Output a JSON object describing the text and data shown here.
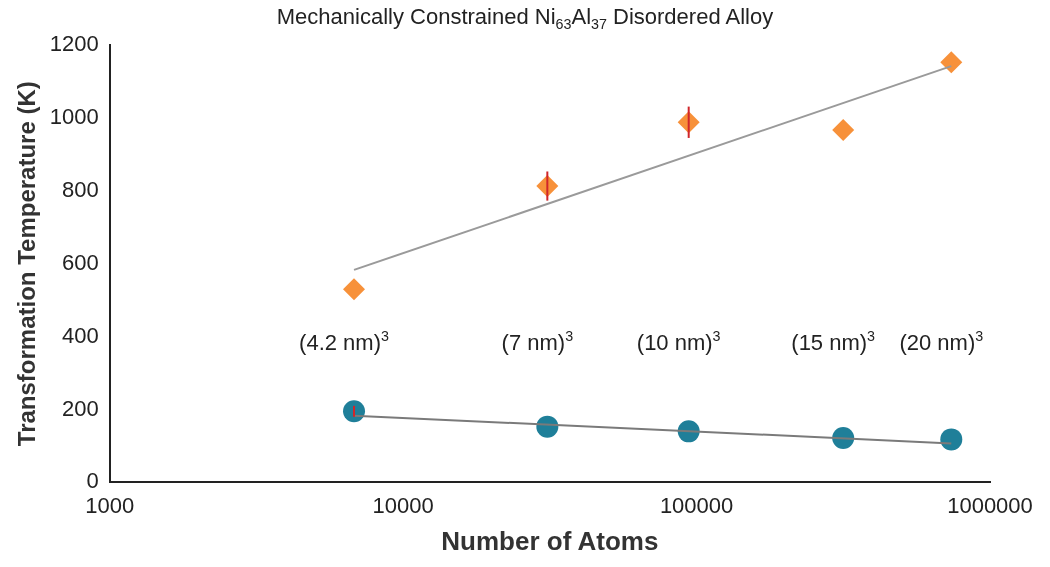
{
  "chart_data": {
    "type": "scatter",
    "title": "Mechanically Constrained Ni$_{63}$Al$_{37}$ Disordered Alloy",
    "xlabel": "Number of Atoms",
    "ylabel": "Transformation Temperature (K)",
    "log": "x",
    "xlim": [
      1000,
      1000000
    ],
    "xticks": [
      1000,
      10000,
      100000,
      1000000
    ],
    "ylim": [
      0,
      1200
    ],
    "yticks": [
      0,
      200,
      400,
      600,
      800,
      1000,
      1200
    ],
    "grid": false,
    "legend": false,
    "series": [
      {
        "marker": "diamond",
        "color": "#f7913a",
        "x": [
          6800,
          31000,
          94000,
          316000,
          738000
        ],
        "values": [
          530,
          813,
          988,
          967,
          1153
        ],
        "errors": [
          null,
          40,
          43,
          null,
          null
        ]
      },
      {
        "marker": "circle",
        "color": "#1f7f99",
        "x": [
          6800,
          31000,
          94000,
          316000,
          738000
        ],
        "values": [
          195,
          153,
          140,
          122,
          118
        ],
        "errors": [
          15,
          null,
          null,
          null,
          null
        ]
      },
      {
        "type": "line",
        "marker": "none",
        "color": "#9a9a9a",
        "x": [
          6800,
          738000
        ],
        "values": [
          583,
          1142
        ]
      },
      {
        "type": "line",
        "marker": "none",
        "color": "#7a7a7a",
        "x": [
          6800,
          738000
        ],
        "values": [
          183,
          107
        ]
      }
    ],
    "annotations": [
      "(4.2 nm)$^{3}$",
      "(7 nm)$^{3}$",
      "(10 nm)$^{3}$",
      "(15 nm)$^{3}$",
      "(20 nm)$^{3}$"
    ]
  }
}
